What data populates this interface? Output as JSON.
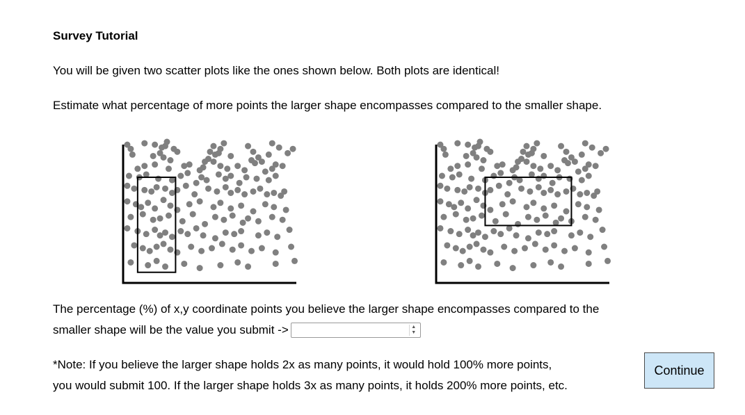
{
  "title": "Survey Tutorial",
  "intro": "You will be given two scatter plots like the ones shown below. Both plots are identical!",
  "instruction": "Estimate what percentage of more points the larger shape encompasses compared to the smaller shape.",
  "answer_prompt": {
    "line1": "The percentage (%) of x,y coordinate points you believe the larger shape encompasses compared to the",
    "line2": "smaller shape will be the value you submit ->",
    "input_value": "",
    "input_placeholder": ""
  },
  "note": {
    "line1": "*Note: If you believe the larger shape holds 2x as many points, it would hold 100% more points,",
    "line2": "you would submit 100. If the larger shape holds 3x as many points, it holds 200% more points, etc."
  },
  "continue_label": "Continue",
  "colors": {
    "point": "#808080",
    "axis": "#000000",
    "button_bg": "#cde6f7"
  },
  "chart_data": [
    {
      "type": "scatter",
      "title": "",
      "xlabel": "",
      "ylabel": "",
      "xlim": [
        0,
        100
      ],
      "ylim": [
        0,
        100
      ],
      "ticks": false,
      "grid": false,
      "shape": {
        "type": "rectangle",
        "x_range": [
          8,
          30
        ],
        "y_range": [
          7,
          74
        ]
      },
      "points_ref": "shared",
      "x": [
        2,
        4,
        12,
        18,
        22,
        24,
        25,
        29,
        50,
        52,
        56,
        58,
        72,
        75,
        86,
        90,
        98,
        5,
        17,
        21,
        23,
        27,
        31,
        47,
        49,
        53,
        55,
        62,
        74,
        78,
        80,
        84,
        95,
        8,
        12,
        18,
        26,
        35,
        38,
        44,
        46,
        52,
        56,
        60,
        66,
        70,
        76,
        82,
        86,
        88,
        92,
        3,
        9,
        13,
        20,
        28,
        33,
        37,
        42,
        45,
        48,
        55,
        59,
        62,
        67,
        71,
        77,
        84,
        88,
        2,
        6,
        12,
        16,
        19,
        24,
        28,
        31,
        36,
        41,
        49,
        54,
        59,
        62,
        66,
        70,
        75,
        79,
        83,
        87,
        91,
        93,
        2,
        7,
        10,
        14,
        18,
        23,
        27,
        31,
        38,
        44,
        52,
        56,
        62,
        68,
        75,
        82,
        87,
        94,
        4,
        11,
        17,
        21,
        26,
        34,
        40,
        47,
        53,
        58,
        63,
        69,
        72,
        78,
        86,
        92,
        2,
        8,
        13,
        18,
        21,
        24,
        28,
        33,
        37,
        42,
        46,
        53,
        59,
        64,
        68,
        78,
        83,
        89,
        96,
        6,
        11,
        15,
        19,
        23,
        27,
        31,
        39,
        45,
        51,
        57,
        63,
        68,
        74,
        80,
        88,
        97,
        4,
        14,
        19,
        24,
        35,
        44,
        56,
        66,
        72,
        88,
        99
      ],
      "y": [
        97,
        94,
        98,
        97,
        95,
        96,
        99,
        94,
        92,
        96,
        94,
        98,
        96,
        92,
        98,
        95,
        94,
        90,
        89,
        91,
        88,
        86,
        92,
        85,
        87,
        90,
        91,
        89,
        86,
        88,
        85,
        90,
        91,
        80,
        82,
        83,
        80,
        82,
        83,
        79,
        81,
        85,
        82,
        80,
        82,
        79,
        84,
        78,
        80,
        83,
        82,
        75,
        74,
        76,
        73,
        72,
        75,
        77,
        70,
        74,
        72,
        76,
        73,
        75,
        70,
        74,
        73,
        72,
        75,
        68,
        66,
        65,
        64,
        67,
        66,
        63,
        65,
        68,
        62,
        66,
        64,
        67,
        63,
        65,
        62,
        64,
        66,
        62,
        63,
        61,
        64,
        57,
        55,
        53,
        56,
        52,
        58,
        54,
        51,
        55,
        57,
        53,
        56,
        52,
        54,
        50,
        55,
        53,
        51,
        46,
        48,
        44,
        45,
        47,
        43,
        48,
        41,
        46,
        44,
        47,
        42,
        45,
        43,
        46,
        44,
        38,
        36,
        34,
        37,
        33,
        35,
        32,
        36,
        34,
        38,
        33,
        31,
        35,
        34,
        36,
        33,
        35,
        32,
        37,
        26,
        24,
        22,
        25,
        27,
        23,
        21,
        25,
        22,
        24,
        27,
        23,
        26,
        22,
        24,
        21,
        25,
        14,
        12,
        15,
        11,
        13,
        10,
        12,
        14,
        11,
        13,
        15
      ]
    },
    {
      "type": "scatter",
      "title": "",
      "xlabel": "",
      "ylabel": "",
      "xlim": [
        0,
        100
      ],
      "ylim": [
        0,
        100
      ],
      "ticks": false,
      "grid": false,
      "shape": {
        "type": "rectangle",
        "x_range": [
          28,
          78
        ],
        "y_range": [
          40,
          74
        ]
      },
      "points_ref": "shared"
    }
  ]
}
